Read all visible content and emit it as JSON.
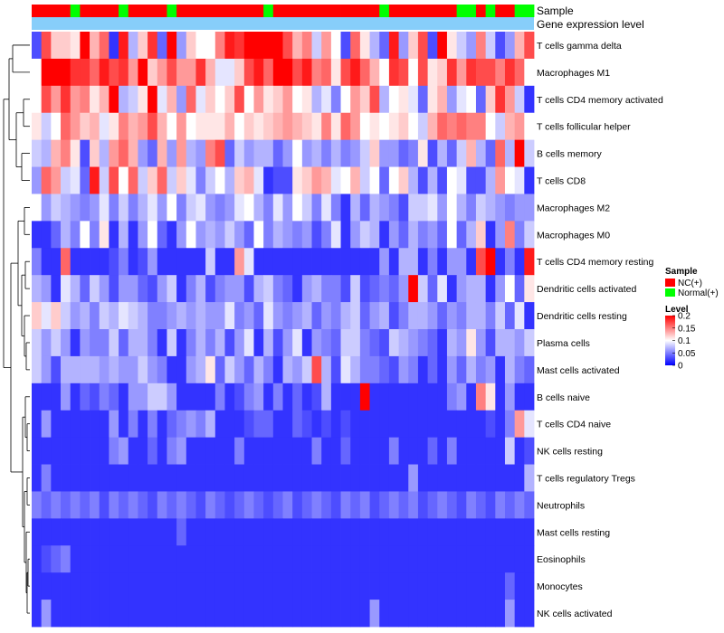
{
  "chart_data": {
    "type": "heatmap",
    "title": "",
    "annotation_title": "Sample",
    "annotation_subtitle": "Gene expression level",
    "rows": [
      "T cells gamma delta",
      "Macrophages M1",
      "T cells CD4 memory activated",
      "T cells follicular helper",
      "B cells memory",
      "T cells CD8",
      "Macrophages M2",
      "Macrophages M0",
      "T cells CD4 memory resting",
      "Dendritic cells activated",
      "Dendritic cells resting",
      "Plasma cells",
      "Mast cells activated",
      "B cells naive",
      "T cells CD4 naive",
      "NK cells resting",
      "T cells regulatory  Tregs",
      "Neutrophils",
      "Mast cells resting",
      "Eosinophils",
      "Monocytes",
      "NK cells activated"
    ],
    "sample_groups": [
      "NC",
      "NC",
      "NC",
      "NC",
      "Normal",
      "NC",
      "NC",
      "NC",
      "NC",
      "Normal",
      "NC",
      "NC",
      "NC",
      "NC",
      "Normal",
      "NC",
      "NC",
      "NC",
      "NC",
      "NC",
      "NC",
      "NC",
      "NC",
      "NC",
      "Normal",
      "NC",
      "NC",
      "NC",
      "NC",
      "NC",
      "NC",
      "NC",
      "NC",
      "NC",
      "NC",
      "NC",
      "Normal",
      "NC",
      "NC",
      "NC",
      "NC",
      "NC",
      "NC",
      "NC",
      "Normal",
      "Normal",
      "NC",
      "Normal",
      "NC",
      "NC",
      "Normal",
      "Normal"
    ],
    "values": [
      [
        0.03,
        0.17,
        0.12,
        0.12,
        0.11,
        0.2,
        0.13,
        0.16,
        0.02,
        0.19,
        0.07,
        0.12,
        0.18,
        0.04,
        0.2,
        0.06,
        0.12,
        0.1,
        0.1,
        0.15,
        0.19,
        0.18,
        0.2,
        0.2,
        0.2,
        0.2,
        0.17,
        0.13,
        0.15,
        0.08,
        0.14,
        0.1,
        0.03,
        0.16,
        0.11,
        0.07,
        0.04,
        0.19,
        0.06,
        0.12,
        0.17,
        0.03,
        0.2,
        0.11,
        0.08,
        0.06,
        0.15,
        0.08,
        0.03,
        0.06,
        0.13,
        0.17
      ],
      [
        0.1,
        0.2,
        0.2,
        0.2,
        0.18,
        0.18,
        0.16,
        0.19,
        0.17,
        0.18,
        0.14,
        0.2,
        0.12,
        0.14,
        0.17,
        0.14,
        0.14,
        0.18,
        0.13,
        0.09,
        0.09,
        0.12,
        0.17,
        0.19,
        0.16,
        0.2,
        0.2,
        0.17,
        0.19,
        0.15,
        0.16,
        0.11,
        0.17,
        0.19,
        0.16,
        0.13,
        0.1,
        0.18,
        0.17,
        0.1,
        0.17,
        0.11,
        0.12,
        0.18,
        0.14,
        0.18,
        0.17,
        0.17,
        0.15,
        0.18,
        0.16,
        0.1
      ],
      [
        0.1,
        0.17,
        0.14,
        0.18,
        0.14,
        0.15,
        0.11,
        0.13,
        0.2,
        0.07,
        0.08,
        0.11,
        0.2,
        0.09,
        0.13,
        0.06,
        0.16,
        0.09,
        0.12,
        0.1,
        0.12,
        0.17,
        0.1,
        0.14,
        0.11,
        0.12,
        0.14,
        0.1,
        0.11,
        0.07,
        0.09,
        0.05,
        0.1,
        0.14,
        0.12,
        0.17,
        0.07,
        0.1,
        0.11,
        0.09,
        0.04,
        0.11,
        0.13,
        0.06,
        0.09,
        0.1,
        0.04,
        0.12,
        0.18,
        0.14,
        0.08,
        0.02
      ],
      [
        0.11,
        0.08,
        0.1,
        0.16,
        0.14,
        0.12,
        0.13,
        0.09,
        0.11,
        0.15,
        0.13,
        0.14,
        0.17,
        0.13,
        0.1,
        0.14,
        0.1,
        0.11,
        0.11,
        0.11,
        0.13,
        0.1,
        0.12,
        0.11,
        0.12,
        0.13,
        0.14,
        0.13,
        0.12,
        0.11,
        0.15,
        0.11,
        0.16,
        0.14,
        0.1,
        0.11,
        0.1,
        0.11,
        0.12,
        0.1,
        0.08,
        0.13,
        0.16,
        0.15,
        0.16,
        0.15,
        0.15,
        0.1,
        0.08,
        0.13,
        0.14,
        0.1
      ],
      [
        0.08,
        0.07,
        0.13,
        0.15,
        0.11,
        0.03,
        0.12,
        0.07,
        0.14,
        0.16,
        0.13,
        0.06,
        0.04,
        0.13,
        0.06,
        0.14,
        0.07,
        0.06,
        0.15,
        0.17,
        0.04,
        0.08,
        0.06,
        0.07,
        0.07,
        0.04,
        0.06,
        0.1,
        0.06,
        0.07,
        0.05,
        0.07,
        0.05,
        0.06,
        0.08,
        0.12,
        0.06,
        0.06,
        0.04,
        0.05,
        0.11,
        0.03,
        0.07,
        0.04,
        0.08,
        0.13,
        0.07,
        0.04,
        0.16,
        0.07,
        0.2,
        0.08
      ],
      [
        0.06,
        0.16,
        0.14,
        0.08,
        0.09,
        0.04,
        0.19,
        0.08,
        0.17,
        0.1,
        0.16,
        0.08,
        0.12,
        0.16,
        0.08,
        0.12,
        0.09,
        0.05,
        0.08,
        0.1,
        0.07,
        0.12,
        0.13,
        0.09,
        0.02,
        0.03,
        0.03,
        0.11,
        0.12,
        0.14,
        0.13,
        0.09,
        0.1,
        0.13,
        0.08,
        0.1,
        0.04,
        0.1,
        0.12,
        0.07,
        0.03,
        0.07,
        0.03,
        0.1,
        0.09,
        0.03,
        0.03,
        0.07,
        0.14,
        0.1,
        0.09,
        0.02
      ],
      [
        0.1,
        0.06,
        0.08,
        0.07,
        0.06,
        0.05,
        0.06,
        0.09,
        0.05,
        0.08,
        0.05,
        0.07,
        0.09,
        0.06,
        0.1,
        0.05,
        0.08,
        0.09,
        0.06,
        0.05,
        0.06,
        0.09,
        0.1,
        0.07,
        0.05,
        0.09,
        0.06,
        0.1,
        0.08,
        0.05,
        0.09,
        0.05,
        0.02,
        0.07,
        0.04,
        0.07,
        0.06,
        0.05,
        0.03,
        0.08,
        0.08,
        0.09,
        0.06,
        0.1,
        0.07,
        0.05,
        0.08,
        0.07,
        0.06,
        0.05,
        0.06,
        0.06
      ],
      [
        0.02,
        0.02,
        0.04,
        0.07,
        0.05,
        0.1,
        0.05,
        0.11,
        0.02,
        0.07,
        0.02,
        0.06,
        0.1,
        0.04,
        0.02,
        0.06,
        0.1,
        0.06,
        0.07,
        0.06,
        0.08,
        0.06,
        0.04,
        0.1,
        0.05,
        0.07,
        0.06,
        0.05,
        0.06,
        0.03,
        0.05,
        0.09,
        0.02,
        0.06,
        0.08,
        0.07,
        0.02,
        0.06,
        0.04,
        0.07,
        0.05,
        0.06,
        0.04,
        0.1,
        0.04,
        0.07,
        0.12,
        0.02,
        0.06,
        0.15,
        0.05,
        0.08
      ],
      [
        0.05,
        0.02,
        0.02,
        0.16,
        0.02,
        0.02,
        0.02,
        0.02,
        0.03,
        0.05,
        0.02,
        0.03,
        0.06,
        0.02,
        0.02,
        0.02,
        0.02,
        0.02,
        0.08,
        0.02,
        0.02,
        0.14,
        0.09,
        0.02,
        0.02,
        0.02,
        0.02,
        0.02,
        0.02,
        0.02,
        0.02,
        0.02,
        0.02,
        0.02,
        0.02,
        0.02,
        0.06,
        0.02,
        0.07,
        0.07,
        0.02,
        0.05,
        0.02,
        0.06,
        0.06,
        0.02,
        0.17,
        0.2,
        0.02,
        0.05,
        0.02,
        0.19
      ],
      [
        0.07,
        0.06,
        0.02,
        0.09,
        0.07,
        0.04,
        0.08,
        0.06,
        0.03,
        0.06,
        0.06,
        0.04,
        0.03,
        0.06,
        0.08,
        0.02,
        0.05,
        0.07,
        0.03,
        0.05,
        0.06,
        0.06,
        0.03,
        0.07,
        0.08,
        0.05,
        0.04,
        0.02,
        0.06,
        0.07,
        0.05,
        0.05,
        0.03,
        0.08,
        0.03,
        0.04,
        0.05,
        0.04,
        0.06,
        0.2,
        0.08,
        0.04,
        0.09,
        0.02,
        0.06,
        0.07,
        0.07,
        0.02,
        0.06,
        0.1,
        0.04,
        0.11
      ],
      [
        0.12,
        0.09,
        0.12,
        0.08,
        0.06,
        0.07,
        0.05,
        0.08,
        0.07,
        0.09,
        0.08,
        0.07,
        0.05,
        0.05,
        0.06,
        0.07,
        0.06,
        0.07,
        0.06,
        0.06,
        0.09,
        0.05,
        0.06,
        0.04,
        0.09,
        0.06,
        0.05,
        0.06,
        0.07,
        0.04,
        0.06,
        0.05,
        0.07,
        0.08,
        0.04,
        0.06,
        0.07,
        0.03,
        0.05,
        0.07,
        0.07,
        0.06,
        0.04,
        0.06,
        0.05,
        0.07,
        0.07,
        0.05,
        0.08,
        0.04,
        0.09,
        0.02
      ],
      [
        0.08,
        0.06,
        0.08,
        0.06,
        0.02,
        0.06,
        0.05,
        0.05,
        0.08,
        0.04,
        0.07,
        0.07,
        0.05,
        0.02,
        0.08,
        0.02,
        0.05,
        0.07,
        0.05,
        0.07,
        0.03,
        0.06,
        0.09,
        0.02,
        0.07,
        0.03,
        0.06,
        0.09,
        0.02,
        0.06,
        0.05,
        0.04,
        0.08,
        0.08,
        0.05,
        0.04,
        0.03,
        0.08,
        0.07,
        0.06,
        0.05,
        0.04,
        0.02,
        0.07,
        0.06,
        0.11,
        0.06,
        0.03,
        0.07,
        0.07,
        0.06,
        0.08
      ],
      [
        0.08,
        0.06,
        0.03,
        0.07,
        0.07,
        0.07,
        0.07,
        0.06,
        0.07,
        0.06,
        0.06,
        0.08,
        0.06,
        0.05,
        0.02,
        0.02,
        0.06,
        0.07,
        0.11,
        0.04,
        0.08,
        0.06,
        0.04,
        0.07,
        0.05,
        0.02,
        0.07,
        0.06,
        0.08,
        0.17,
        0.07,
        0.03,
        0.09,
        0.07,
        0.05,
        0.05,
        0.04,
        0.03,
        0.06,
        0.05,
        0.02,
        0.04,
        0.02,
        0.06,
        0.04,
        0.07,
        0.05,
        0.06,
        0.02,
        0.07,
        0.05,
        0.04
      ],
      [
        0.02,
        0.02,
        0.02,
        0.06,
        0.02,
        0.04,
        0.03,
        0.05,
        0.04,
        0.02,
        0.06,
        0.06,
        0.08,
        0.08,
        0.06,
        0.02,
        0.02,
        0.02,
        0.02,
        0.05,
        0.02,
        0.03,
        0.05,
        0.06,
        0.02,
        0.05,
        0.02,
        0.04,
        0.02,
        0.03,
        0.07,
        0.02,
        0.02,
        0.02,
        0.2,
        0.02,
        0.02,
        0.02,
        0.02,
        0.02,
        0.02,
        0.02,
        0.02,
        0.05,
        0.06,
        0.02,
        0.15,
        0.11,
        0.02,
        0.06,
        0.02,
        0.02
      ],
      [
        0.02,
        0.06,
        0.02,
        0.02,
        0.02,
        0.02,
        0.02,
        0.02,
        0.06,
        0.02,
        0.05,
        0.02,
        0.05,
        0.02,
        0.04,
        0.05,
        0.06,
        0.05,
        0.07,
        0.02,
        0.02,
        0.02,
        0.03,
        0.04,
        0.04,
        0.02,
        0.02,
        0.04,
        0.03,
        0.02,
        0.03,
        0.02,
        0.03,
        0.02,
        0.02,
        0.02,
        0.02,
        0.02,
        0.02,
        0.02,
        0.02,
        0.02,
        0.02,
        0.02,
        0.02,
        0.02,
        0.02,
        0.03,
        0.02,
        0.05,
        0.14,
        0.09
      ],
      [
        0.02,
        0.02,
        0.02,
        0.02,
        0.02,
        0.02,
        0.02,
        0.02,
        0.05,
        0.06,
        0.02,
        0.02,
        0.04,
        0.02,
        0.05,
        0.06,
        0.02,
        0.02,
        0.02,
        0.02,
        0.02,
        0.05,
        0.02,
        0.02,
        0.02,
        0.02,
        0.02,
        0.02,
        0.02,
        0.05,
        0.02,
        0.02,
        0.04,
        0.02,
        0.02,
        0.02,
        0.02,
        0.05,
        0.02,
        0.02,
        0.02,
        0.04,
        0.02,
        0.05,
        0.02,
        0.02,
        0.02,
        0.02,
        0.02,
        0.08,
        0.02,
        0.03
      ],
      [
        0.02,
        0.05,
        0.02,
        0.02,
        0.02,
        0.02,
        0.02,
        0.02,
        0.02,
        0.02,
        0.02,
        0.02,
        0.02,
        0.02,
        0.02,
        0.02,
        0.02,
        0.02,
        0.02,
        0.02,
        0.02,
        0.02,
        0.02,
        0.02,
        0.02,
        0.02,
        0.02,
        0.02,
        0.02,
        0.02,
        0.02,
        0.02,
        0.02,
        0.02,
        0.02,
        0.02,
        0.02,
        0.02,
        0.02,
        0.06,
        0.02,
        0.02,
        0.02,
        0.02,
        0.02,
        0.02,
        0.02,
        0.02,
        0.02,
        0.02,
        0.02,
        0.07
      ],
      [
        0.05,
        0.04,
        0.05,
        0.04,
        0.05,
        0.04,
        0.05,
        0.03,
        0.05,
        0.04,
        0.05,
        0.04,
        0.03,
        0.05,
        0.04,
        0.05,
        0.04,
        0.03,
        0.05,
        0.04,
        0.03,
        0.04,
        0.05,
        0.04,
        0.03,
        0.04,
        0.05,
        0.03,
        0.04,
        0.05,
        0.04,
        0.03,
        0.05,
        0.04,
        0.05,
        0.03,
        0.04,
        0.05,
        0.04,
        0.05,
        0.03,
        0.04,
        0.05,
        0.04,
        0.03,
        0.05,
        0.04,
        0.03,
        0.05,
        0.04,
        0.05,
        0.04
      ],
      [
        0.02,
        0.02,
        0.02,
        0.02,
        0.02,
        0.02,
        0.02,
        0.02,
        0.02,
        0.02,
        0.02,
        0.02,
        0.02,
        0.02,
        0.02,
        0.04,
        0.02,
        0.02,
        0.02,
        0.02,
        0.02,
        0.02,
        0.02,
        0.02,
        0.02,
        0.02,
        0.02,
        0.02,
        0.02,
        0.02,
        0.02,
        0.02,
        0.02,
        0.02,
        0.02,
        0.02,
        0.02,
        0.02,
        0.02,
        0.02,
        0.02,
        0.02,
        0.02,
        0.02,
        0.02,
        0.02,
        0.02,
        0.02,
        0.02,
        0.02,
        0.02,
        0.02
      ],
      [
        0.02,
        0.03,
        0.04,
        0.05,
        0.02,
        0.02,
        0.02,
        0.02,
        0.02,
        0.02,
        0.02,
        0.02,
        0.02,
        0.02,
        0.02,
        0.02,
        0.02,
        0.02,
        0.02,
        0.02,
        0.02,
        0.02,
        0.02,
        0.02,
        0.02,
        0.02,
        0.02,
        0.02,
        0.02,
        0.02,
        0.02,
        0.02,
        0.02,
        0.02,
        0.02,
        0.02,
        0.02,
        0.02,
        0.02,
        0.02,
        0.02,
        0.02,
        0.02,
        0.02,
        0.02,
        0.02,
        0.02,
        0.02,
        0.02,
        0.02,
        0.02,
        0.02
      ],
      [
        0.02,
        0.02,
        0.02,
        0.02,
        0.02,
        0.02,
        0.02,
        0.02,
        0.02,
        0.02,
        0.02,
        0.02,
        0.02,
        0.02,
        0.02,
        0.02,
        0.02,
        0.02,
        0.02,
        0.02,
        0.02,
        0.02,
        0.02,
        0.02,
        0.02,
        0.02,
        0.02,
        0.02,
        0.02,
        0.02,
        0.02,
        0.02,
        0.02,
        0.02,
        0.02,
        0.02,
        0.02,
        0.02,
        0.02,
        0.02,
        0.02,
        0.02,
        0.02,
        0.02,
        0.02,
        0.02,
        0.02,
        0.02,
        0.02,
        0.04,
        0.02,
        0.02
      ],
      [
        0.02,
        0.06,
        0.02,
        0.02,
        0.02,
        0.02,
        0.02,
        0.02,
        0.02,
        0.02,
        0.02,
        0.02,
        0.02,
        0.02,
        0.02,
        0.02,
        0.02,
        0.02,
        0.02,
        0.02,
        0.02,
        0.02,
        0.02,
        0.02,
        0.02,
        0.02,
        0.02,
        0.02,
        0.02,
        0.02,
        0.02,
        0.02,
        0.02,
        0.02,
        0.02,
        0.06,
        0.02,
        0.02,
        0.02,
        0.02,
        0.02,
        0.02,
        0.02,
        0.02,
        0.02,
        0.02,
        0.02,
        0.02,
        0.02,
        0.06,
        0.02,
        0.02
      ]
    ],
    "legend": {
      "sample_title": "Sample",
      "sample_items": [
        {
          "label": "NC(+)",
          "color": "#ff0000"
        },
        {
          "label": "Normal(+)",
          "color": "#00ff00"
        }
      ],
      "level_title": "Level",
      "level_ticks": [
        "0.2",
        "0.15",
        "0.1",
        "0.05",
        "0"
      ],
      "scale": {
        "min": 0,
        "mid": 0.1,
        "max": 0.2
      },
      "colors": {
        "low": "#0000ff",
        "mid": "#ffffff",
        "high": "#ff0000"
      }
    },
    "annotation_color": "#87cefa",
    "position": "right"
  }
}
